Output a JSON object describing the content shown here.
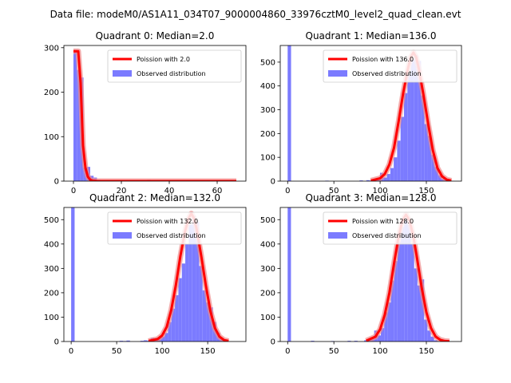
{
  "suptitle": "Data file: modeM0/AS1A11_034T07_9000004860_33976cztM0_level2_quad_clean.evt",
  "colors": {
    "hist": "#7b7bff",
    "curve": "#ff0000",
    "curve_glow": "#ef8a8a",
    "frame": "#000000",
    "legend_edge": "#cccccc"
  },
  "chart_data": [
    {
      "type": "bar",
      "title": "Quadrant 0: Median=2.0",
      "median": 2.0,
      "xlim": [
        -4,
        72
      ],
      "ylim": [
        0,
        305
      ],
      "xticks": [
        0,
        20,
        40,
        60
      ],
      "yticks": [
        0,
        100,
        200,
        300
      ],
      "legend": [
        "Poission with 2.0",
        "Observed distribution"
      ],
      "legend_loc": "upper right",
      "bins": [
        {
          "x0": 0.0,
          "x1": 1.4,
          "count": 295
        },
        {
          "x0": 1.4,
          "x1": 2.8,
          "count": 250
        },
        {
          "x0": 2.8,
          "x1": 4.2,
          "count": 233
        },
        {
          "x0": 4.2,
          "x1": 5.6,
          "count": 30
        },
        {
          "x0": 5.6,
          "x1": 7.0,
          "count": 32
        },
        {
          "x0": 7.0,
          "x1": 8.4,
          "count": 12
        },
        {
          "x0": 8.4,
          "x1": 9.8,
          "count": 8
        },
        {
          "x0": 9.8,
          "x1": 11.2,
          "count": 3
        },
        {
          "x0": 11.2,
          "x1": 12.6,
          "count": 2
        },
        {
          "x0": 12.6,
          "x1": 14.0,
          "count": 1
        },
        {
          "x0": 14.0,
          "x1": 15.4,
          "count": 1
        },
        {
          "x0": 30.8,
          "x1": 32.2,
          "count": 3
        },
        {
          "x0": 50.4,
          "x1": 51.8,
          "count": 1
        },
        {
          "x0": 57.4,
          "x1": 58.8,
          "count": 1
        }
      ],
      "curve": {
        "x": [
          0,
          1,
          2,
          3,
          4,
          5,
          6,
          7,
          8,
          10,
          15,
          20,
          40,
          68
        ],
        "y": [
          292,
          292,
          292,
          220,
          80,
          30,
          10,
          3,
          1,
          0,
          0,
          0,
          0,
          0
        ]
      }
    },
    {
      "type": "bar",
      "title": "Quadrant 1: Median=136.0",
      "median": 136.0,
      "xlim": [
        -8,
        188
      ],
      "ylim": [
        0,
        570
      ],
      "xticks": [
        0,
        50,
        100,
        150
      ],
      "yticks": [
        0,
        100,
        200,
        300,
        400,
        500
      ],
      "legend": [
        "Poission with 136.0",
        "Observed distribution"
      ],
      "legend_loc": "upper right",
      "bins": [
        {
          "x0": 0.0,
          "x1": 3.7,
          "count": 570
        },
        {
          "x0": 40.7,
          "x1": 44.4,
          "count": 2
        },
        {
          "x0": 77.7,
          "x1": 81.4,
          "count": 3
        },
        {
          "x0": 85.1,
          "x1": 88.8,
          "count": 4
        },
        {
          "x0": 88.8,
          "x1": 92.5,
          "count": 2
        },
        {
          "x0": 92.5,
          "x1": 96.2,
          "count": 5
        },
        {
          "x0": 96.2,
          "x1": 99.9,
          "count": 10
        },
        {
          "x0": 99.9,
          "x1": 103.6,
          "count": 35
        },
        {
          "x0": 103.6,
          "x1": 107.3,
          "count": 15
        },
        {
          "x0": 107.3,
          "x1": 111.0,
          "count": 30
        },
        {
          "x0": 111.0,
          "x1": 114.7,
          "count": 55
        },
        {
          "x0": 114.7,
          "x1": 118.4,
          "count": 100
        },
        {
          "x0": 118.4,
          "x1": 122.1,
          "count": 170
        },
        {
          "x0": 122.1,
          "x1": 125.8,
          "count": 270
        },
        {
          "x0": 125.8,
          "x1": 129.5,
          "count": 370
        },
        {
          "x0": 129.5,
          "x1": 133.2,
          "count": 450
        },
        {
          "x0": 133.2,
          "x1": 136.9,
          "count": 510
        },
        {
          "x0": 136.9,
          "x1": 140.6,
          "count": 530
        },
        {
          "x0": 140.6,
          "x1": 144.3,
          "count": 505
        },
        {
          "x0": 144.3,
          "x1": 148.0,
          "count": 360
        },
        {
          "x0": 148.0,
          "x1": 151.7,
          "count": 240
        },
        {
          "x0": 151.7,
          "x1": 155.4,
          "count": 190
        },
        {
          "x0": 155.4,
          "x1": 159.1,
          "count": 110
        },
        {
          "x0": 159.1,
          "x1": 162.8,
          "count": 60
        },
        {
          "x0": 162.8,
          "x1": 166.5,
          "count": 25
        },
        {
          "x0": 166.5,
          "x1": 170.2,
          "count": 10
        },
        {
          "x0": 170.2,
          "x1": 173.9,
          "count": 4
        }
      ],
      "curve": {
        "x": [
          90,
          100,
          105,
          110,
          115,
          120,
          125,
          130,
          133,
          136,
          139,
          142,
          147,
          152,
          157,
          162,
          167,
          172,
          177
        ],
        "y": [
          2,
          12,
          30,
          70,
          140,
          250,
          370,
          470,
          520,
          540,
          520,
          470,
          360,
          240,
          130,
          55,
          20,
          6,
          2
        ]
      }
    },
    {
      "type": "bar",
      "title": "Quadrant 2: Median=132.0",
      "median": 132.0,
      "xlim": [
        -8,
        192
      ],
      "ylim": [
        0,
        550
      ],
      "xticks": [
        0,
        50,
        100,
        150
      ],
      "yticks": [
        0,
        100,
        200,
        300,
        400,
        500
      ],
      "legend": [
        "Poission with 132.0",
        "Observed distribution"
      ],
      "legend_loc": "upper right",
      "bins": [
        {
          "x0": 0.0,
          "x1": 3.8,
          "count": 550
        },
        {
          "x0": 53.2,
          "x1": 57.0,
          "count": 3
        },
        {
          "x0": 57.0,
          "x1": 60.8,
          "count": 2
        },
        {
          "x0": 60.8,
          "x1": 64.6,
          "count": 4
        },
        {
          "x0": 76.0,
          "x1": 79.8,
          "count": 3
        },
        {
          "x0": 79.8,
          "x1": 83.6,
          "count": 5
        },
        {
          "x0": 83.6,
          "x1": 87.4,
          "count": 3
        },
        {
          "x0": 87.4,
          "x1": 91.2,
          "count": 15
        },
        {
          "x0": 91.2,
          "x1": 95.0,
          "count": 8
        },
        {
          "x0": 95.0,
          "x1": 98.8,
          "count": 15
        },
        {
          "x0": 98.8,
          "x1": 102.6,
          "count": 20
        },
        {
          "x0": 102.6,
          "x1": 106.4,
          "count": 35
        },
        {
          "x0": 106.4,
          "x1": 110.2,
          "count": 80
        },
        {
          "x0": 110.2,
          "x1": 114.0,
          "count": 135
        },
        {
          "x0": 114.0,
          "x1": 117.8,
          "count": 190
        },
        {
          "x0": 117.8,
          "x1": 121.6,
          "count": 260
        },
        {
          "x0": 121.6,
          "x1": 125.4,
          "count": 320
        },
        {
          "x0": 125.4,
          "x1": 129.2,
          "count": 400
        },
        {
          "x0": 129.2,
          "x1": 133.0,
          "count": 480
        },
        {
          "x0": 133.0,
          "x1": 136.8,
          "count": 515
        },
        {
          "x0": 136.8,
          "x1": 140.6,
          "count": 490
        },
        {
          "x0": 140.6,
          "x1": 144.4,
          "count": 310
        },
        {
          "x0": 144.4,
          "x1": 148.2,
          "count": 210
        },
        {
          "x0": 148.2,
          "x1": 152.0,
          "count": 160
        },
        {
          "x0": 152.0,
          "x1": 155.8,
          "count": 140
        },
        {
          "x0": 155.8,
          "x1": 159.6,
          "count": 80
        },
        {
          "x0": 159.6,
          "x1": 163.4,
          "count": 35
        },
        {
          "x0": 163.4,
          "x1": 167.2,
          "count": 15
        },
        {
          "x0": 167.2,
          "x1": 171.0,
          "count": 5
        }
      ],
      "curve": {
        "x": [
          85,
          95,
          100,
          105,
          110,
          115,
          120,
          125,
          129,
          132,
          135,
          138,
          143,
          148,
          153,
          158,
          163,
          168,
          173
        ],
        "y": [
          2,
          10,
          25,
          60,
          130,
          230,
          350,
          450,
          505,
          525,
          505,
          460,
          350,
          230,
          125,
          55,
          20,
          6,
          2
        ]
      }
    },
    {
      "type": "bar",
      "title": "Quadrant 3: Median=128.0",
      "median": 128.0,
      "xlim": [
        -8,
        188
      ],
      "ylim": [
        0,
        550
      ],
      "xticks": [
        0,
        50,
        100,
        150
      ],
      "yticks": [
        0,
        100,
        200,
        300,
        400,
        500
      ],
      "legend": [
        "Poission with 128.0",
        "Observed distribution"
      ],
      "legend_loc": "upper right",
      "bins": [
        {
          "x0": 0.0,
          "x1": 3.6,
          "count": 550
        },
        {
          "x0": 25.2,
          "x1": 28.8,
          "count": 3
        },
        {
          "x0": 46.8,
          "x1": 50.4,
          "count": 2
        },
        {
          "x0": 64.8,
          "x1": 68.4,
          "count": 3
        },
        {
          "x0": 72.0,
          "x1": 75.6,
          "count": 3
        },
        {
          "x0": 82.8,
          "x1": 86.4,
          "count": 5
        },
        {
          "x0": 86.4,
          "x1": 90.0,
          "count": 8
        },
        {
          "x0": 90.0,
          "x1": 93.6,
          "count": 15
        },
        {
          "x0": 93.6,
          "x1": 97.2,
          "count": 45
        },
        {
          "x0": 97.2,
          "x1": 100.8,
          "count": 25
        },
        {
          "x0": 100.8,
          "x1": 104.4,
          "count": 55
        },
        {
          "x0": 104.4,
          "x1": 108.0,
          "count": 120
        },
        {
          "x0": 108.0,
          "x1": 111.6,
          "count": 160
        },
        {
          "x0": 111.6,
          "x1": 115.2,
          "count": 250
        },
        {
          "x0": 115.2,
          "x1": 118.8,
          "count": 330
        },
        {
          "x0": 118.8,
          "x1": 122.4,
          "count": 410
        },
        {
          "x0": 122.4,
          "x1": 126.0,
          "count": 470
        },
        {
          "x0": 126.0,
          "x1": 129.6,
          "count": 505
        },
        {
          "x0": 129.6,
          "x1": 133.2,
          "count": 480
        },
        {
          "x0": 133.2,
          "x1": 136.8,
          "count": 400
        },
        {
          "x0": 136.8,
          "x1": 140.4,
          "count": 300
        },
        {
          "x0": 140.4,
          "x1": 144.0,
          "count": 230
        },
        {
          "x0": 144.0,
          "x1": 147.6,
          "count": 255
        },
        {
          "x0": 147.6,
          "x1": 151.2,
          "count": 90
        },
        {
          "x0": 151.2,
          "x1": 154.8,
          "count": 45
        },
        {
          "x0": 154.8,
          "x1": 158.4,
          "count": 20
        },
        {
          "x0": 158.4,
          "x1": 162.0,
          "count": 5
        }
      ],
      "curve": {
        "x": [
          85,
          95,
          100,
          105,
          110,
          115,
          120,
          124,
          128,
          132,
          136,
          140,
          145,
          150,
          155,
          160,
          165,
          170,
          175
        ],
        "y": [
          3,
          20,
          50,
          110,
          200,
          320,
          430,
          495,
          520,
          495,
          430,
          340,
          220,
          120,
          55,
          20,
          7,
          2,
          1
        ]
      }
    }
  ]
}
